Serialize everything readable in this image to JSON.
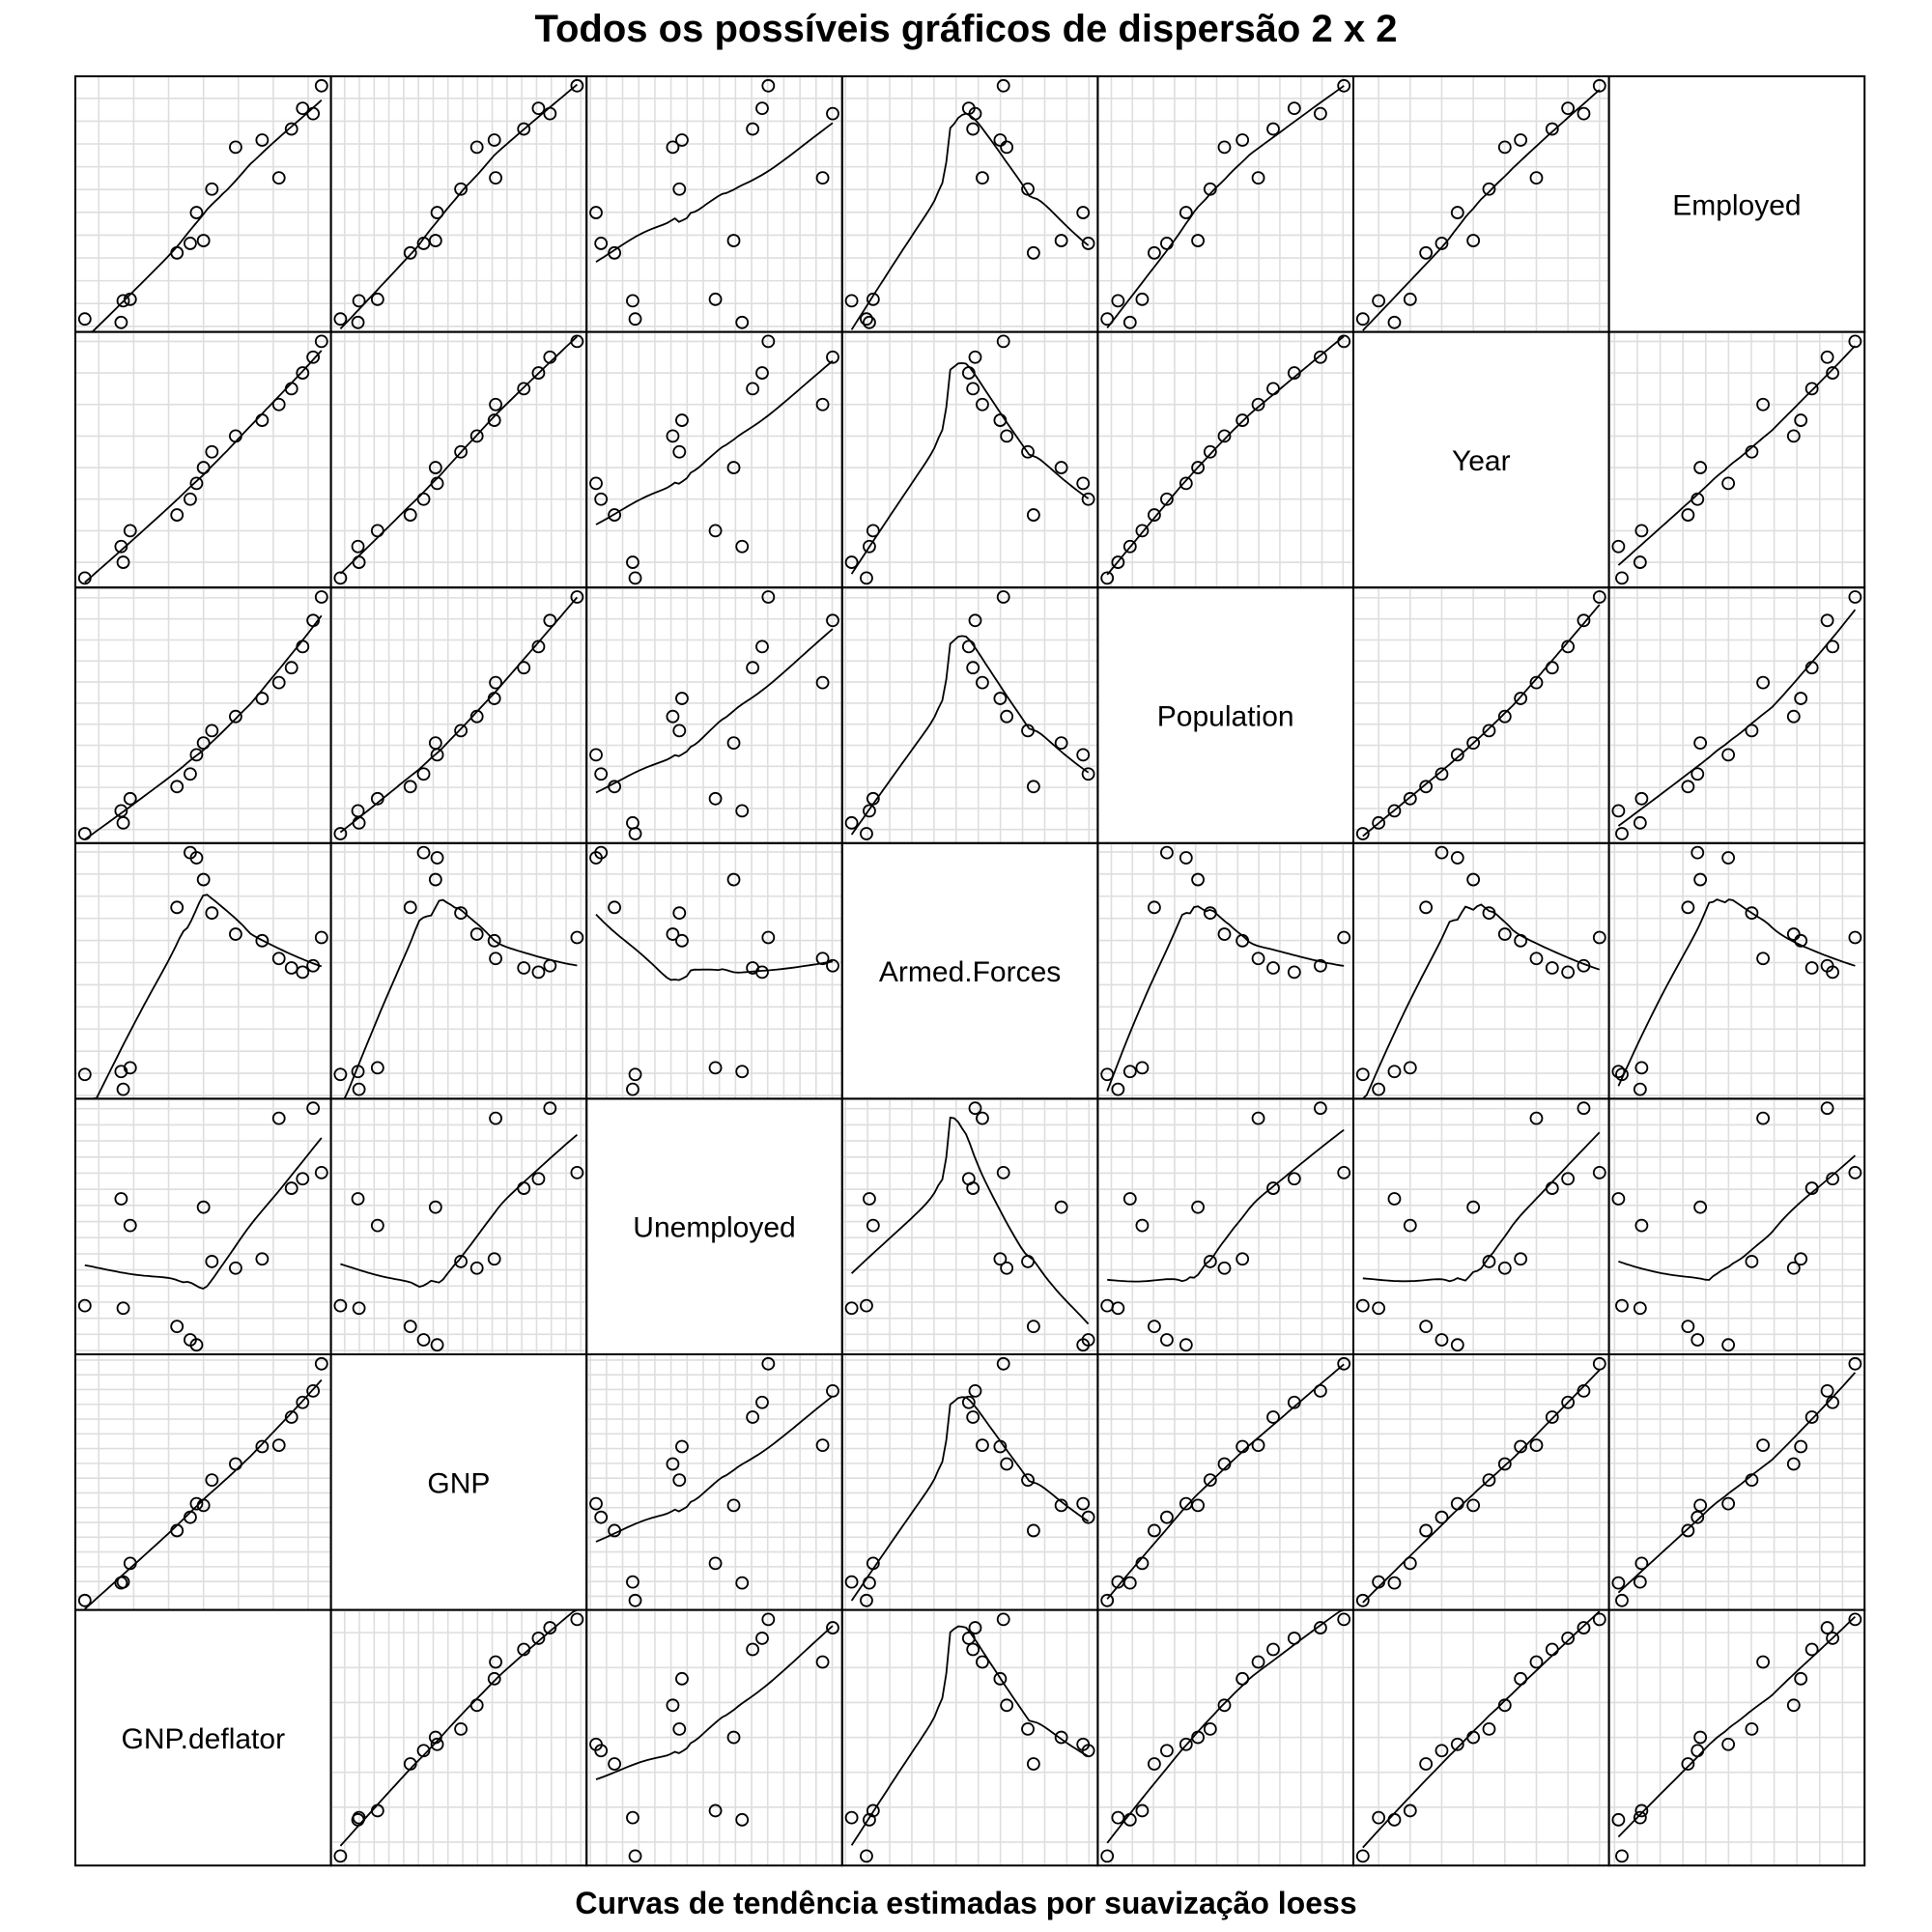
{
  "title": "Todos os possíveis gráficos de dispersão 2 x 2",
  "caption": "Curvas de tendência estimadas por suavização loess",
  "chart_data": {
    "type": "scatter",
    "matrix": "pairs",
    "smoother": "loess",
    "grid": true,
    "variables": [
      "GNP.deflator",
      "GNP",
      "Unemployed",
      "Armed.Forces",
      "Population",
      "Year",
      "Employed"
    ],
    "data": {
      "GNP.deflator": [
        83.0,
        88.5,
        88.2,
        89.5,
        96.2,
        98.1,
        99.0,
        100.0,
        101.2,
        104.6,
        108.4,
        110.8,
        112.6,
        114.2,
        115.7,
        116.9
      ],
      "GNP": [
        234.289,
        259.426,
        258.054,
        284.599,
        328.975,
        346.999,
        365.385,
        363.112,
        397.469,
        419.18,
        442.769,
        444.546,
        482.704,
        502.601,
        518.173,
        554.894
      ],
      "Unemployed": [
        235.6,
        232.5,
        368.2,
        335.1,
        209.9,
        193.2,
        187.0,
        357.8,
        290.4,
        282.2,
        293.6,
        468.1,
        381.3,
        393.1,
        480.6,
        400.7
      ],
      "Armed.Forces": [
        159.0,
        145.6,
        161.6,
        165.0,
        309.9,
        359.4,
        354.7,
        335.0,
        304.8,
        285.7,
        279.8,
        263.7,
        255.2,
        251.4,
        257.2,
        282.7
      ],
      "Population": [
        107.608,
        108.632,
        109.773,
        110.929,
        112.075,
        113.27,
        115.094,
        116.219,
        117.388,
        118.734,
        120.445,
        121.95,
        123.366,
        125.368,
        127.852,
        130.081
      ],
      "Year": [
        1947,
        1948,
        1949,
        1950,
        1951,
        1952,
        1953,
        1954,
        1955,
        1956,
        1957,
        1958,
        1959,
        1960,
        1961,
        1962
      ],
      "Employed": [
        60.323,
        61.122,
        60.171,
        61.187,
        63.221,
        63.639,
        64.989,
        63.761,
        66.019,
        67.857,
        68.169,
        66.513,
        68.655,
        69.564,
        69.331,
        70.551
      ]
    }
  }
}
